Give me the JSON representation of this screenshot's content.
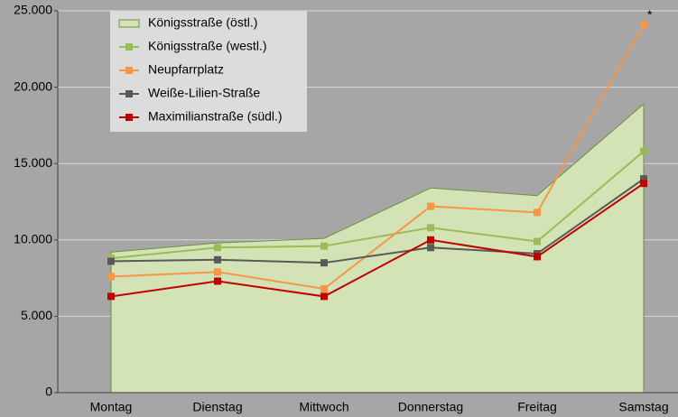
{
  "chart_data": {
    "type": "line",
    "categories": [
      "Montag",
      "Dienstag",
      "Mittwoch",
      "Donnerstag",
      "Freitag",
      "Samstag"
    ],
    "series": [
      {
        "name": "Königsstraße (östl.)",
        "style": "area",
        "color": "#d3e3b6",
        "values": [
          9200,
          9800,
          10100,
          13400,
          12900,
          18900
        ]
      },
      {
        "name": "Königsstraße (westl.)",
        "color": "#9bbb59",
        "values": [
          8800,
          9500,
          9600,
          10800,
          9900,
          15800
        ]
      },
      {
        "name": "Neupfarrplatz",
        "color": "#f79646",
        "values": [
          7600,
          7900,
          6800,
          12200,
          11800,
          24100
        ]
      },
      {
        "name": "Weiße-Lilien-Straße",
        "color": "#595959",
        "values": [
          8600,
          8700,
          8500,
          9500,
          9100,
          14000
        ]
      },
      {
        "name": "Maximilianstraße (südl.)",
        "color": "#c00000",
        "values": [
          6300,
          7300,
          6300,
          10000,
          8900,
          13700
        ]
      }
    ],
    "annotations": [
      "*"
    ],
    "ylim": [
      0,
      25000
    ],
    "yticks": [
      0,
      {
        "value": 5000,
        "label": "5.000"
      },
      {
        "value": 10000,
        "label": "10.000"
      },
      {
        "value": 15000,
        "label": "15.000"
      },
      {
        "value": 20000,
        "label": "20.000"
      },
      {
        "value": 25000,
        "label": "25.000"
      }
    ],
    "grid": true
  }
}
